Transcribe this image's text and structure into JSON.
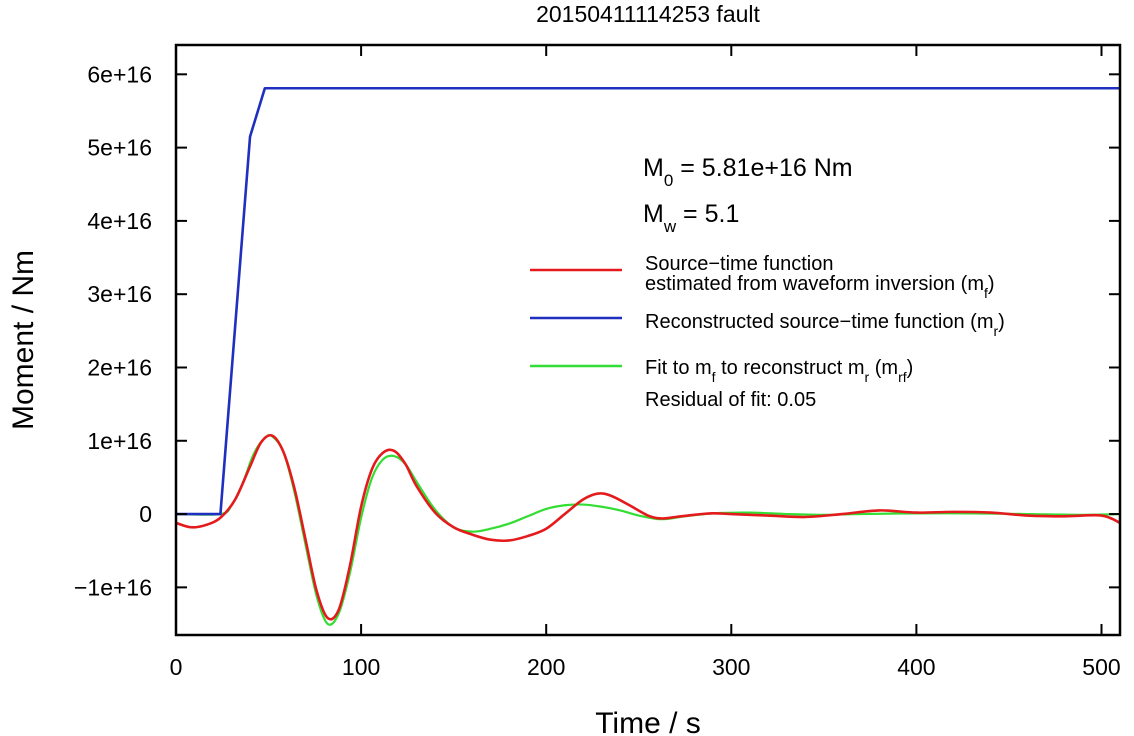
{
  "chart_data": {
    "type": "line",
    "title": "20150411114253 fault",
    "xlabel": "Time / s",
    "ylabel": "Moment / Nm",
    "xlim": [
      0,
      510
    ],
    "ylim": [
      -1.65e+16,
      6.4e+16
    ],
    "grid": false,
    "legend_position": "right-center",
    "x_ticks": [
      {
        "value": 0,
        "label": "0"
      },
      {
        "value": 100,
        "label": "100"
      },
      {
        "value": 200,
        "label": "200"
      },
      {
        "value": 300,
        "label": "300"
      },
      {
        "value": 400,
        "label": "400"
      },
      {
        "value": 500,
        "label": "500"
      }
    ],
    "y_ticks": [
      {
        "value": -1e+16,
        "label": "−1e+16"
      },
      {
        "value": 0,
        "label": "0"
      },
      {
        "value": 1e+16,
        "label": "1e+16"
      },
      {
        "value": 2e+16,
        "label": "2e+16"
      },
      {
        "value": 3e+16,
        "label": "3e+16"
      },
      {
        "value": 4e+16,
        "label": "4e+16"
      },
      {
        "value": 5e+16,
        "label": "5e+16"
      },
      {
        "value": 6e+16,
        "label": "6e+16"
      }
    ],
    "annotations": {
      "m0": {
        "main": "M",
        "sub": "0",
        "rest": " = 5.81e+16 Nm"
      },
      "mw": {
        "main": "M",
        "sub": "w",
        "rest": " = 5.1"
      },
      "residual": "Residual of fit: 0.05"
    },
    "legend": [
      {
        "color": "#e41a1c",
        "lines": [
          {
            "text": "Source−time function"
          },
          {
            "text": "estimated from waveform inversion (m",
            "sub": "f",
            "after": ")"
          }
        ]
      },
      {
        "color": "#1f2fbf",
        "lines": [
          {
            "text": "Reconstructed source−time function (m",
            "sub": "r",
            "after": ")"
          }
        ]
      },
      {
        "color": "#33dd33",
        "lines": [
          {
            "text": "Fit to m",
            "sub": "f",
            "after": " to reconstruct m",
            "sub2": "r",
            "after2": " (m",
            "sub3": "rf",
            "after3": ")"
          }
        ]
      }
    ],
    "series": [
      {
        "key": "reconstructed",
        "color": "#1f2fbf",
        "x": [
          0,
          24,
          40,
          48,
          510
        ],
        "y": [
          0,
          0,
          5.15e+16,
          5.81e+16,
          5.81e+16
        ]
      },
      {
        "key": "estimated",
        "color": "#e41a1c",
        "x": [
          0,
          8,
          16,
          24,
          32,
          40,
          46,
          52,
          58,
          64,
          70,
          76,
          82,
          88,
          94,
          100,
          106,
          112,
          118,
          124,
          130,
          140,
          150,
          160,
          170,
          180,
          190,
          200,
          210,
          220,
          228,
          235,
          245,
          255,
          262,
          270,
          280,
          290,
          300,
          320,
          340,
          360,
          380,
          400,
          420,
          440,
          460,
          480,
          500,
          510
        ],
        "y": [
          -1200000000000000.0,
          -1800000000000000.0,
          -1500000000000000.0,
          -500000000000000.0,
          2000000000000000.0,
          6500000000000000.0,
          9800000000000000.0,
          1.07e+16,
          8500000000000000.0,
          3500000000000000.0,
          -3500000000000000.0,
          -1.05e+16,
          -1.42e+16,
          -1.3e+16,
          -7000000000000000.0,
          1000000000000000.0,
          6200000000000000.0,
          8400000000000000.0,
          8600000000000000.0,
          6800000000000000.0,
          3800000000000000.0,
          200000000000000.0,
          -1800000000000000.0,
          -2800000000000000.0,
          -3500000000000000.0,
          -3600000000000000.0,
          -3000000000000000.0,
          -2000000000000000.0,
          0.0,
          2000000000000000.0,
          2800000000000000.0,
          2500000000000000.0,
          1200000000000000.0,
          -200000000000000.0,
          -600000000000000.0,
          -400000000000000.0,
          -100000000000000.0,
          100000000000000.0,
          0.0,
          -200000000000000.0,
          -400000000000000.0,
          0.0,
          500000000000000.0,
          200000000000000.0,
          300000000000000.0,
          200000000000000.0,
          -200000000000000.0,
          -300000000000000.0,
          -200000000000000.0,
          -1200000000000000.0
        ]
      },
      {
        "key": "fit",
        "color": "#33dd33",
        "x": [
          0,
          24,
          30,
          36,
          42,
          48,
          52,
          58,
          64,
          70,
          76,
          82,
          88,
          94,
          100,
          106,
          112,
          118,
          124,
          130,
          140,
          150,
          160,
          170,
          180,
          190,
          200,
          210,
          220,
          230,
          240,
          250,
          262,
          275,
          290,
          310,
          330,
          350,
          370,
          400,
          430,
          460,
          490,
          510
        ],
        "y": [
          0,
          0,
          1200000000000000.0,
          4200000000000000.0,
          8200000000000000.0,
          1.04e+16,
          1.06e+16,
          8500000000000000.0,
          3000000000000000.0,
          -4200000000000000.0,
          -1.12e+16,
          -1.5e+16,
          -1.35e+16,
          -8000000000000000.0,
          -500000000000000.0,
          5000000000000000.0,
          7500000000000000.0,
          7900000000000000.0,
          6800000000000000.0,
          4400000000000000.0,
          600000000000000.0,
          -1800000000000000.0,
          -2400000000000000.0,
          -2000000000000000.0,
          -1300000000000000.0,
          -300000000000000.0,
          700000000000000.0,
          1200000000000000.0,
          1300000000000000.0,
          1000000000000000.0,
          500000000000000.0,
          -200000000000000.0,
          -700000000000000.0,
          -300000000000000.0,
          100000000000000.0,
          200000000000000.0,
          0.0,
          -100000000000000.0,
          0.0,
          100000000000000.0,
          100000000000000.0,
          0.0,
          -100000000000000.0,
          0.0
        ]
      }
    ]
  }
}
